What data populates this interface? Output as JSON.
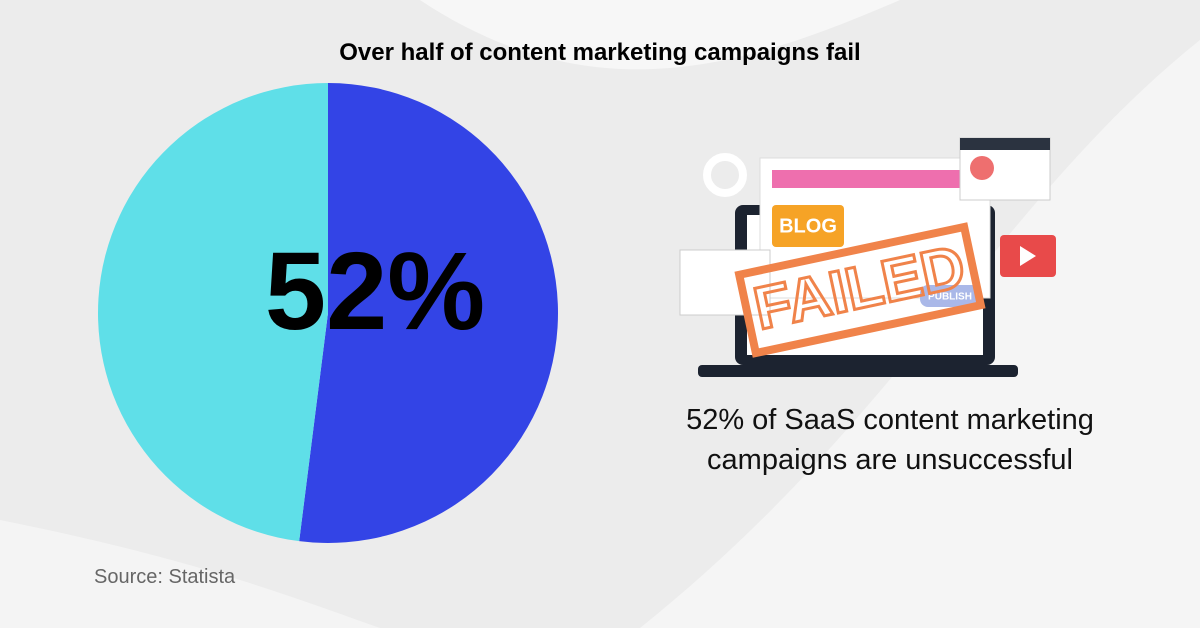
{
  "chart_data": {
    "type": "pie",
    "title": "Over half of content marketing campaigns fail",
    "categories": [
      null,
      null
    ],
    "values": [
      52,
      48
    ],
    "value_labels": [
      "52%",
      null
    ],
    "colors": [
      "#3344e6",
      "#5fdfe8"
    ],
    "annotation": "52% of SaaS content marketing campaigns are unsuccessful",
    "source": "Source: Statista"
  },
  "illustration": {
    "labels": [
      "BLOG",
      "FAILED",
      "PUBLISH"
    ]
  }
}
